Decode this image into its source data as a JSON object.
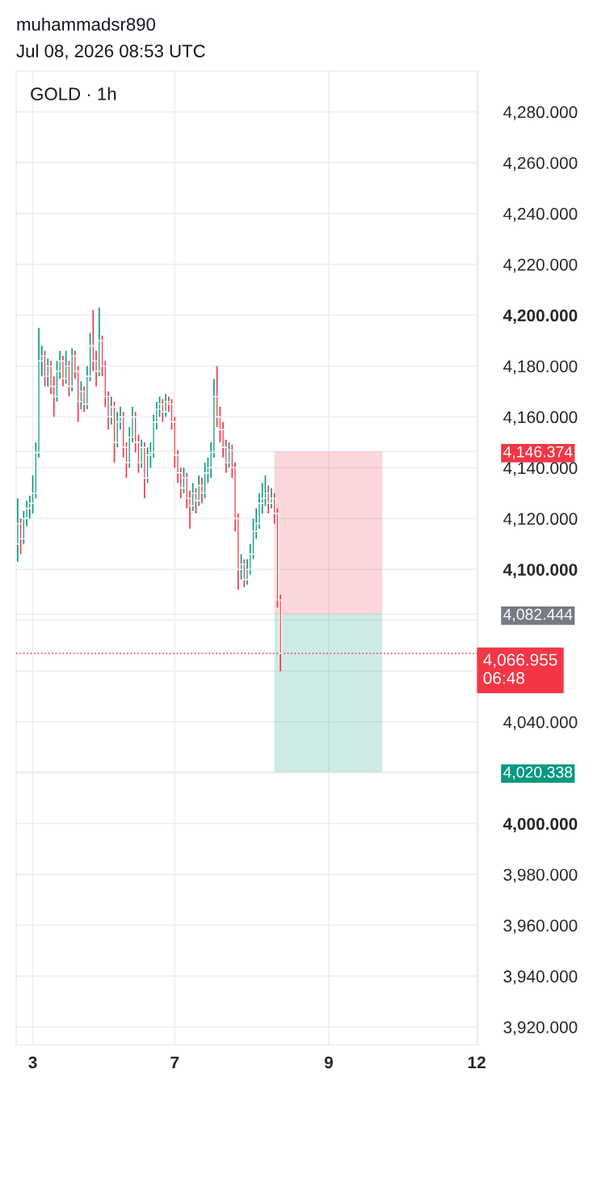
{
  "chart_data": {
    "type": "candlestick",
    "title": "GOLD · 1h",
    "annotations": [
      "muhammadsr890",
      "Jul 08, 2026 08:53 UTC"
    ],
    "categories": [
      null,
      null,
      null,
      null,
      null,
      "3",
      null,
      null,
      null,
      null,
      null,
      null,
      null,
      null,
      null,
      null,
      null,
      null,
      null,
      null,
      null,
      null,
      null,
      null,
      null,
      null,
      null,
      null,
      null,
      null,
      null,
      null,
      null,
      null,
      null,
      null,
      null,
      null,
      null,
      null,
      null,
      null,
      null,
      null,
      null,
      null,
      null,
      null,
      null,
      null,
      null,
      null,
      "7",
      null,
      null,
      null,
      null,
      null,
      null,
      null,
      null,
      null,
      null,
      null,
      null,
      null,
      null,
      null,
      null,
      null,
      null,
      null,
      null,
      null,
      null,
      null,
      null,
      null,
      null,
      null,
      null,
      null,
      null,
      null,
      null,
      null,
      null,
      null,
      null,
      null,
      null,
      null,
      null,
      null,
      null,
      null,
      null,
      null,
      null,
      null,
      null,
      null,
      null,
      "9",
      null,
      null,
      null,
      null,
      null,
      null,
      null,
      null,
      null,
      null,
      null,
      null,
      null,
      null,
      null,
      null,
      null,
      null,
      null,
      null,
      null,
      null,
      null,
      null,
      null,
      null,
      null,
      null,
      null,
      null,
      null,
      null,
      null,
      null,
      null,
      null,
      null,
      null,
      null,
      null,
      null,
      null,
      null,
      null,
      null,
      null,
      null,
      null,
      "12"
    ],
    "ohlc": [
      [
        4110,
        4128,
        4103,
        4118
      ],
      [
        4118,
        4120,
        4106,
        4112
      ],
      [
        4112,
        4123,
        4110,
        4120
      ],
      [
        4120,
        4127,
        4117,
        4124
      ],
      [
        4124,
        4129,
        4120,
        4126
      ],
      [
        4126,
        4137,
        4122,
        4130
      ],
      [
        4130,
        4150,
        4128,
        4146
      ],
      [
        4146,
        4195,
        4144,
        4182
      ],
      [
        4182,
        4188,
        4176,
        4184
      ],
      [
        4184,
        4186,
        4172,
        4176
      ],
      [
        4176,
        4183,
        4172,
        4180
      ],
      [
        4180,
        4182,
        4169,
        4172
      ],
      [
        4172,
        4176,
        4160,
        4168
      ],
      [
        4168,
        4182,
        4166,
        4178
      ],
      [
        4178,
        4186,
        4175,
        4182
      ],
      [
        4182,
        4184,
        4172,
        4175
      ],
      [
        4175,
        4186,
        4173,
        4180
      ],
      [
        4180,
        4182,
        4168,
        4172
      ],
      [
        4172,
        4187,
        4170,
        4184
      ],
      [
        4184,
        4186,
        4175,
        4178
      ],
      [
        4178,
        4180,
        4158,
        4166
      ],
      [
        4166,
        4174,
        4163,
        4170
      ],
      [
        4170,
        4172,
        4162,
        4165
      ],
      [
        4165,
        4180,
        4163,
        4176
      ],
      [
        4176,
        4193,
        4174,
        4188
      ],
      [
        4188,
        4202,
        4178,
        4182
      ],
      [
        4182,
        4186,
        4172,
        4178
      ],
      [
        4178,
        4203,
        4176,
        4190
      ],
      [
        4190,
        4192,
        4176,
        4180
      ],
      [
        4180,
        4182,
        4164,
        4168
      ],
      [
        4168,
        4170,
        4155,
        4160
      ],
      [
        4160,
        4168,
        4157,
        4164
      ],
      [
        4164,
        4166,
        4142,
        4150
      ],
      [
        4150,
        4162,
        4148,
        4158
      ],
      [
        4158,
        4164,
        4155,
        4160
      ],
      [
        4160,
        4162,
        4144,
        4148
      ],
      [
        4148,
        4150,
        4136,
        4142
      ],
      [
        4142,
        4156,
        4140,
        4152
      ],
      [
        4152,
        4164,
        4150,
        4160
      ],
      [
        4160,
        4162,
        4146,
        4150
      ],
      [
        4150,
        4153,
        4138,
        4142
      ],
      [
        4142,
        4151,
        4140,
        4148
      ],
      [
        4148,
        4150,
        4128,
        4136
      ],
      [
        4136,
        4148,
        4134,
        4145
      ],
      [
        4145,
        4150,
        4140,
        4146
      ],
      [
        4146,
        4161,
        4144,
        4158
      ],
      [
        4158,
        4166,
        4155,
        4163
      ],
      [
        4163,
        4168,
        4160,
        4165
      ],
      [
        4165,
        4167,
        4158,
        4162
      ],
      [
        4162,
        4169,
        4160,
        4166
      ],
      [
        4166,
        4168,
        4162,
        4165
      ],
      [
        4165,
        4167,
        4155,
        4158
      ],
      [
        4158,
        4160,
        4140,
        4145
      ],
      [
        4145,
        4147,
        4134,
        4138
      ],
      [
        4138,
        4140,
        4128,
        4132
      ],
      [
        4132,
        4140,
        4130,
        4136
      ],
      [
        4136,
        4138,
        4124,
        4128
      ],
      [
        4128,
        4131,
        4116,
        4125
      ],
      [
        4125,
        4134,
        4123,
        4130
      ],
      [
        4130,
        4132,
        4122,
        4127
      ],
      [
        4127,
        4137,
        4125,
        4133
      ],
      [
        4133,
        4136,
        4126,
        4130
      ],
      [
        4130,
        4142,
        4128,
        4138
      ],
      [
        4138,
        4144,
        4134,
        4140
      ],
      [
        4140,
        4150,
        4136,
        4146
      ],
      [
        4146,
        4175,
        4144,
        4168
      ],
      [
        4168,
        4180,
        4156,
        4160
      ],
      [
        4160,
        4164,
        4150,
        4155
      ],
      [
        4155,
        4158,
        4144,
        4148
      ],
      [
        4148,
        4151,
        4138,
        4142
      ],
      [
        4142,
        4150,
        4140,
        4147
      ],
      [
        4147,
        4149,
        4136,
        4140
      ],
      [
        4140,
        4142,
        4115,
        4120
      ],
      [
        4120,
        4122,
        4092,
        4100
      ],
      [
        4100,
        4106,
        4096,
        4102
      ],
      [
        4102,
        4104,
        4093,
        4096
      ],
      [
        4096,
        4104,
        4094,
        4100
      ],
      [
        4100,
        4110,
        4098,
        4106
      ],
      [
        4106,
        4120,
        4104,
        4115
      ],
      [
        4115,
        4124,
        4112,
        4118
      ],
      [
        4118,
        4130,
        4116,
        4126
      ],
      [
        4126,
        4134,
        4122,
        4128
      ],
      [
        4128,
        4137,
        4125,
        4130
      ],
      [
        4130,
        4133,
        4122,
        4126
      ],
      [
        4126,
        4132,
        4124,
        4128
      ],
      [
        4128,
        4130,
        4118,
        4122
      ],
      [
        4122,
        4124,
        4085,
        4088
      ],
      [
        4088,
        4090,
        4060,
        4066.955
      ],
      null,
      null,
      null,
      null,
      null,
      null,
      null,
      null,
      null,
      null,
      null,
      null,
      null,
      null,
      null,
      null,
      null,
      null,
      null,
      null,
      null,
      null,
      null,
      null,
      null,
      null,
      null,
      null,
      null,
      null,
      null,
      null,
      null,
      null,
      null,
      null,
      null,
      null,
      null,
      null,
      null,
      null,
      null,
      null,
      null,
      null,
      null,
      null,
      null,
      null,
      null,
      null,
      null,
      null,
      null,
      null,
      null,
      null,
      null,
      null,
      null,
      null,
      null,
      null,
      null
    ],
    "colors": [
      "#089981",
      "#f23645",
      "#089981",
      "#089981",
      "#089981",
      "#089981",
      "#089981",
      "#089981",
      "#089981",
      "#f23645",
      "#089981",
      "#f23645",
      "#f23645",
      "#089981",
      "#089981",
      "#f23645",
      "#089981",
      "#f23645",
      "#089981",
      "#f23645",
      "#f23645",
      "#089981",
      "#f23645",
      "#089981",
      "#089981",
      "#f23645",
      "#f23645",
      "#089981",
      "#f23645",
      "#f23645",
      "#f23645",
      "#089981",
      "#f23645",
      "#089981",
      "#089981",
      "#f23645",
      "#f23645",
      "#089981",
      "#089981",
      "#f23645",
      "#f23645",
      "#089981",
      "#f23645",
      "#089981",
      "#089981",
      "#089981",
      "#089981",
      "#089981",
      "#f23645",
      "#089981",
      "#f23645",
      "#f23645",
      "#f23645",
      "#f23645",
      "#f23645",
      "#089981",
      "#f23645",
      "#f23645",
      "#089981",
      "#f23645",
      "#089981",
      "#f23645",
      "#089981",
      "#089981",
      "#089981",
      "#089981",
      "#f23645",
      "#f23645",
      "#f23645",
      "#f23645",
      "#089981",
      "#f23645",
      "#f23645",
      "#f23645",
      "#089981",
      "#f23645",
      "#089981",
      "#089981",
      "#089981",
      "#089981",
      "#089981",
      "#089981",
      "#089981",
      "#f23645",
      "#089981",
      "#f23645",
      "#f23645",
      "#f23645",
      null,
      null,
      null,
      null,
      null,
      null,
      null,
      null,
      null,
      null,
      null,
      null,
      null,
      null,
      null,
      null,
      null,
      null,
      null,
      null,
      null,
      null,
      null,
      null,
      null,
      null,
      null,
      null,
      null,
      null,
      null,
      null,
      null,
      null,
      null,
      null,
      null,
      null,
      null,
      null,
      null,
      null,
      null,
      null,
      null,
      null,
      null,
      null,
      null,
      null,
      null,
      null,
      null,
      null,
      null,
      null,
      null,
      null,
      null,
      null,
      null,
      null,
      null,
      null,
      null
    ],
    "bands": [
      {
        "axis": "y",
        "from": 4082.444,
        "to": 4146.374,
        "color": "#f23645"
      },
      {
        "axis": "y",
        "from": 4020.338,
        "to": 4082.444,
        "color": "#089981"
      }
    ],
    "ref_lines": [
      {
        "axis": "y",
        "value": 4066.955,
        "label": "4,066.955\n06:48",
        "color": "#f23645",
        "line_style": "dotted"
      }
    ],
    "ylim": [
      3913,
      4296
    ],
    "yticks": [
      {
        "value": 3920,
        "label": "3,920.000"
      },
      {
        "value": 3940,
        "label": "3,940.000"
      },
      {
        "value": 3960,
        "label": "3,960.000"
      },
      {
        "value": 3980,
        "label": "3,980.000"
      },
      {
        "value": 4000,
        "label": "4,000.000"
      },
      {
        "value": 4020,
        "label": null
      },
      {
        "value": 4020.338,
        "label": "4,020.338"
      },
      {
        "value": 4040,
        "label": "4,040.000"
      },
      {
        "value": 4060,
        "label": null
      },
      {
        "value": 4080,
        "label": null
      },
      {
        "value": 4082.444,
        "label": "4,082.444"
      },
      {
        "value": 4100,
        "label": "4,100.000"
      },
      {
        "value": 4120,
        "label": "4,120.000"
      },
      {
        "value": 4140,
        "label": "4,140.000"
      },
      {
        "value": 4146.374,
        "label": "4,146.374"
      },
      {
        "value": 4160,
        "label": "4,160.000"
      },
      {
        "value": 4180,
        "label": "4,180.000"
      },
      {
        "value": 4200,
        "label": "4,200.000"
      },
      {
        "value": 4220,
        "label": "4,220.000"
      },
      {
        "value": 4240,
        "label": "4,240.000"
      },
      {
        "value": 4260,
        "label": "4,260.000"
      },
      {
        "value": 4280,
        "label": "4,280.000"
      }
    ],
    "grid": true
  }
}
